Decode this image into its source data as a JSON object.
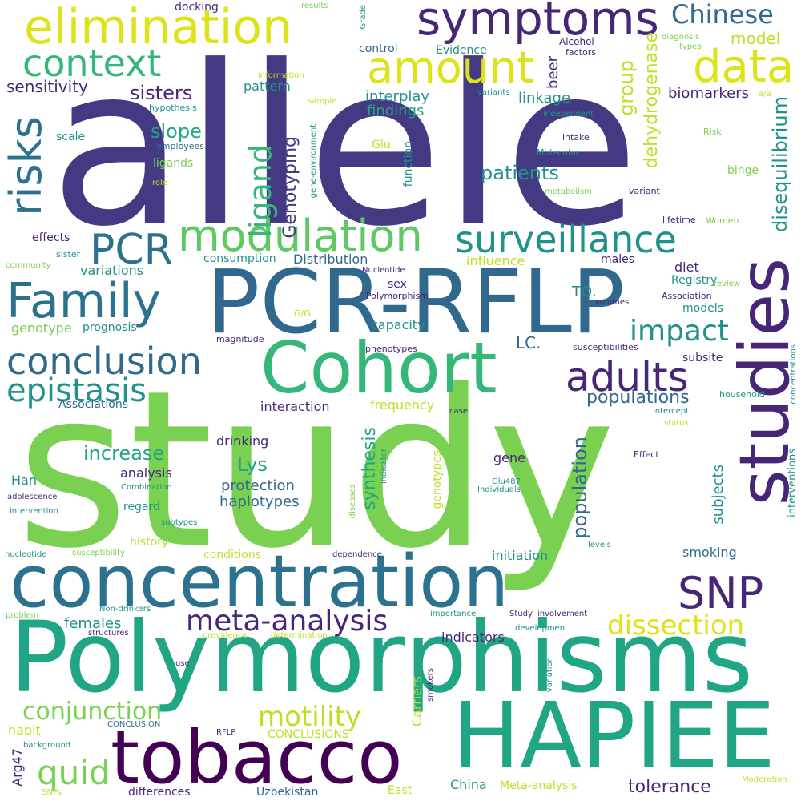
{
  "colors": {
    "background": "#ffffff",
    "dark_purple": "#440154",
    "indigo": "#443983",
    "blue": "#31688e",
    "teal": "#21918c",
    "green": "#35b779",
    "light_green": "#7ad151",
    "yellow": "#dde318"
  },
  "words": {
    "allele": "allele",
    "study": "study",
    "polymorphisms": "Polymorphisms",
    "pcr_rflp": "PCR-RFLP",
    "concentration": "concentration",
    "cohort": "Cohort",
    "hapiee": "HAPIEE",
    "tobacco": "tobacco",
    "studies": "studies",
    "symptoms": "symptoms",
    "elimination": "elimination",
    "modulation": "modulation",
    "surveillance": "surveillance",
    "family": "Family",
    "risks": "risks",
    "amount": "amount",
    "context": "context",
    "data": "data",
    "pcr": "PCR",
    "conclusion": "conclusion",
    "epistasis": "epistasis",
    "adults": "adults",
    "snp": "SNP",
    "meta_analysis": "meta-analysis",
    "dissection": "dissection",
    "impact": "impact",
    "chinese": "Chinese",
    "motility": "motility",
    "conjunction": "conjunction",
    "quid": "quid",
    "ligand": "ligand",
    "disequilibrium": "disequilibrium",
    "populations": "populations",
    "patients": "patients",
    "dehydrogenase": "dehydrogenase",
    "increase": "increase",
    "population": "population",
    "tolerance": "tolerance",
    "lys": "Lys",
    "sisters": "sisters",
    "slope": "slope",
    "model": "model",
    "genotyping": "Genotyping",
    "group": "group",
    "synthesis": "synthesis",
    "protection": "protection",
    "haplotypes": "haplotypes",
    "subjects": "subjects",
    "sensitivity": "sensitivity",
    "pattern": "pattern",
    "beer": "beer",
    "interplay": "interplay",
    "linkage": "linkage",
    "biomarkers": "biomarkers",
    "findings": "findings",
    "tq": "TQ.",
    "lc": "LC.",
    "distribution": "Distribution",
    "influence": "influence",
    "variations": "variations",
    "consumption": "consumption",
    "effects": "effects",
    "prognosis": "prognosis",
    "genotype": "genotype",
    "capacity": "capacity",
    "models": "models",
    "registry": "Registry",
    "diet": "diet",
    "males": "males",
    "sex": "sex",
    "subsite": "subsite",
    "interaction": "interaction",
    "frequency": "frequency",
    "associations": "Associations",
    "drinking": "drinking",
    "han": "Han",
    "analysis": "analysis",
    "regard": "regard",
    "gene": "gene",
    "history": "history",
    "conditions": "conditions",
    "initiation": "initiation",
    "smoking": "smoking",
    "females": "females",
    "indicators": "indicators",
    "habit": "habit",
    "arg47": "Arg47",
    "carriers": "Carriers",
    "china": "China",
    "meta_analysis_cap": "Meta-analysis",
    "uzbekistan": "Uzbekistan",
    "differences": "differences",
    "east": "East",
    "conclusions": "CONCLUSIONS",
    "conclusion_caps": "CONCLUSION",
    "rflp": "RFLP",
    "genotypes": "genotypes",
    "interventions": "interventions",
    "concentrations": "concentrations",
    "docking": "docking",
    "results": "results",
    "grade": "Grade",
    "control": "control",
    "evidence": "Evidence",
    "alcohol": "Alcohol",
    "factors": "factors",
    "diagnosis": "diagnosis",
    "types": "types",
    "information": "information",
    "hypothesis": "hypothesis",
    "sample": "sample",
    "variants": "variants",
    "independent": "independent",
    "a_a": "a/a",
    "scale": "scale",
    "employees": "employees",
    "glu": "Glu",
    "gene_environment": "gene-environment",
    "function": "function",
    "intake": "intake",
    "risk": "Risk",
    "molecular": "Molecular",
    "ligands": "ligands",
    "role": "role",
    "binge": "binge",
    "metabolism": "metabolism",
    "variant": "variant",
    "lifetime": "lifetime",
    "women": "Women",
    "sister": "sister",
    "community": "community",
    "nucleotide": "Nucleotide",
    "review": "review",
    "polymorphism": "Polymorphism",
    "association": "Association",
    "volumes": "volumes",
    "g_g": "G/G",
    "magnitude": "magnitude",
    "phenotypes": "phenotypes",
    "susceptibilities": "susceptibilities",
    "household": "household",
    "case": "case",
    "intercept": "intercept",
    "status": "status",
    "effect": "Effect",
    "glu487": "Glu487",
    "individuals": "Individuals",
    "combination": "Combination",
    "adolescence": "adolescence",
    "intervention": "intervention",
    "subtypes": "subtypes",
    "diseases": "diseases",
    "indicator": "indicator",
    "levels": "levels",
    "nucleotide_lc": "nucleotide",
    "susceptibility": "susceptibility",
    "dependence": "dependence",
    "non_drinkers": "Non-drinkers",
    "problem": "problem",
    "structures": "structures",
    "prevalence": "prevalence",
    "determination": "determination",
    "importance": "importance",
    "study_cap": "Study",
    "involvement": "involvement",
    "development": "development",
    "use": "use",
    "smokers": "smokers",
    "variation": "variation",
    "background": "background",
    "snps": "SNPs",
    "moderation": "Moderation"
  }
}
